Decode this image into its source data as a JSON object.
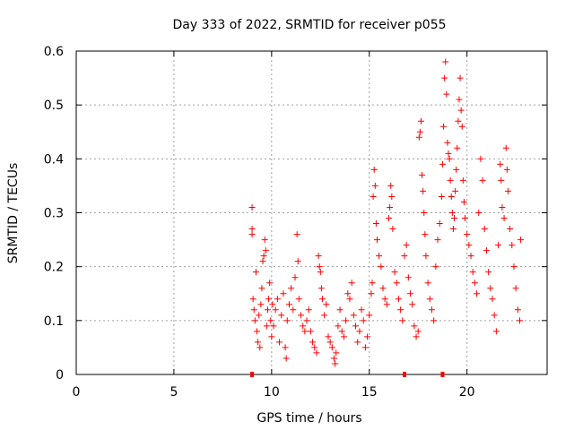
{
  "chart_data": {
    "type": "scatter",
    "title": "Day 333 of 2022, SRMTID for receiver p055",
    "xlabel": "GPS time / hours",
    "ylabel": "SRMTID / TECUs",
    "xlim": [
      0,
      24.1
    ],
    "ylim": [
      0,
      0.6
    ],
    "xticks": [
      0,
      5,
      10,
      15,
      20
    ],
    "xtick_labels": [
      "0",
      "5",
      "10",
      "15",
      "20"
    ],
    "yticks": [
      0,
      0.1,
      0.2,
      0.3,
      0.4,
      0.5,
      0.6
    ],
    "ytick_labels": [
      "0",
      "0.1",
      "0.2",
      "0.3",
      "0.4",
      "0.5",
      "0.6"
    ],
    "grid": true,
    "marker": "+",
    "color": "#ff0000",
    "series": [
      {
        "name": "SRMTID",
        "points": [
          [
            9.0,
            0.31
          ],
          [
            9.0,
            0.27
          ],
          [
            9.0,
            0.26
          ],
          [
            9.05,
            0.14
          ],
          [
            9.1,
            0.12
          ],
          [
            9.15,
            0.1
          ],
          [
            9.2,
            0.19
          ],
          [
            9.25,
            0.08
          ],
          [
            9.3,
            0.06
          ],
          [
            9.35,
            0.11
          ],
          [
            9.4,
            0.05
          ],
          [
            9.45,
            0.13
          ],
          [
            9.5,
            0.16
          ],
          [
            9.55,
            0.21
          ],
          [
            9.6,
            0.22
          ],
          [
            9.65,
            0.25
          ],
          [
            9.7,
            0.23
          ],
          [
            9.75,
            0.09
          ],
          [
            9.8,
            0.12
          ],
          [
            9.85,
            0.14
          ],
          [
            9.9,
            0.17
          ],
          [
            9.95,
            0.1
          ],
          [
            10.0,
            0.07
          ],
          [
            10.05,
            0.13
          ],
          [
            10.1,
            0.09
          ],
          [
            10.2,
            0.12
          ],
          [
            10.3,
            0.14
          ],
          [
            10.4,
            0.06
          ],
          [
            10.5,
            0.11
          ],
          [
            10.6,
            0.15
          ],
          [
            10.7,
            0.05
          ],
          [
            10.75,
            0.03
          ],
          [
            10.8,
            0.1
          ],
          [
            10.9,
            0.13
          ],
          [
            11.0,
            0.16
          ],
          [
            11.1,
            0.12
          ],
          [
            11.2,
            0.18
          ],
          [
            11.3,
            0.26
          ],
          [
            11.35,
            0.21
          ],
          [
            11.4,
            0.14
          ],
          [
            11.5,
            0.11
          ],
          [
            11.6,
            0.09
          ],
          [
            11.7,
            0.08
          ],
          [
            11.8,
            0.1
          ],
          [
            11.9,
            0.12
          ],
          [
            12.0,
            0.08
          ],
          [
            12.1,
            0.06
          ],
          [
            12.2,
            0.05
          ],
          [
            12.3,
            0.04
          ],
          [
            12.4,
            0.22
          ],
          [
            12.45,
            0.2
          ],
          [
            12.5,
            0.19
          ],
          [
            12.55,
            0.16
          ],
          [
            12.6,
            0.14
          ],
          [
            12.7,
            0.11
          ],
          [
            12.8,
            0.13
          ],
          [
            12.9,
            0.07
          ],
          [
            13.0,
            0.06
          ],
          [
            13.1,
            0.05
          ],
          [
            13.2,
            0.03
          ],
          [
            13.25,
            0.02
          ],
          [
            13.3,
            0.04
          ],
          [
            13.4,
            0.09
          ],
          [
            13.5,
            0.12
          ],
          [
            13.6,
            0.08
          ],
          [
            13.7,
            0.07
          ],
          [
            13.8,
            0.1
          ],
          [
            13.9,
            0.15
          ],
          [
            14.0,
            0.14
          ],
          [
            14.1,
            0.17
          ],
          [
            14.2,
            0.11
          ],
          [
            14.3,
            0.09
          ],
          [
            14.4,
            0.06
          ],
          [
            14.5,
            0.08
          ],
          [
            14.6,
            0.12
          ],
          [
            14.7,
            0.1
          ],
          [
            14.8,
            0.05
          ],
          [
            14.9,
            0.07
          ],
          [
            15.0,
            0.11
          ],
          [
            15.1,
            0.15
          ],
          [
            15.15,
            0.17
          ],
          [
            15.2,
            0.33
          ],
          [
            15.25,
            0.38
          ],
          [
            15.3,
            0.35
          ],
          [
            15.35,
            0.28
          ],
          [
            15.4,
            0.25
          ],
          [
            15.5,
            0.22
          ],
          [
            15.6,
            0.2
          ],
          [
            15.7,
            0.16
          ],
          [
            15.8,
            0.14
          ],
          [
            15.9,
            0.13
          ],
          [
            16.0,
            0.29
          ],
          [
            16.05,
            0.31
          ],
          [
            16.1,
            0.35
          ],
          [
            16.15,
            0.33
          ],
          [
            16.2,
            0.27
          ],
          [
            16.3,
            0.19
          ],
          [
            16.4,
            0.17
          ],
          [
            16.5,
            0.14
          ],
          [
            16.6,
            0.12
          ],
          [
            16.7,
            0.1
          ],
          [
            16.8,
            0.22
          ],
          [
            16.9,
            0.24
          ],
          [
            17.0,
            0.18
          ],
          [
            17.1,
            0.15
          ],
          [
            17.2,
            0.13
          ],
          [
            17.3,
            0.09
          ],
          [
            17.4,
            0.07
          ],
          [
            17.5,
            0.08
          ],
          [
            17.55,
            0.44
          ],
          [
            17.6,
            0.45
          ],
          [
            17.65,
            0.47
          ],
          [
            17.7,
            0.37
          ],
          [
            17.75,
            0.34
          ],
          [
            17.8,
            0.3
          ],
          [
            17.85,
            0.26
          ],
          [
            17.9,
            0.22
          ],
          [
            18.0,
            0.17
          ],
          [
            18.1,
            0.14
          ],
          [
            18.2,
            0.12
          ],
          [
            18.3,
            0.1
          ],
          [
            18.4,
            0.2
          ],
          [
            18.5,
            0.25
          ],
          [
            18.6,
            0.28
          ],
          [
            18.7,
            0.33
          ],
          [
            18.75,
            0.39
          ],
          [
            18.8,
            0.46
          ],
          [
            18.85,
            0.55
          ],
          [
            18.9,
            0.58
          ],
          [
            18.95,
            0.52
          ],
          [
            19.0,
            0.43
          ],
          [
            19.05,
            0.41
          ],
          [
            19.1,
            0.4
          ],
          [
            19.15,
            0.36
          ],
          [
            19.2,
            0.33
          ],
          [
            19.25,
            0.3
          ],
          [
            19.3,
            0.27
          ],
          [
            19.35,
            0.29
          ],
          [
            19.4,
            0.34
          ],
          [
            19.45,
            0.38
          ],
          [
            19.5,
            0.42
          ],
          [
            19.55,
            0.47
          ],
          [
            19.6,
            0.51
          ],
          [
            19.65,
            0.55
          ],
          [
            19.7,
            0.49
          ],
          [
            19.75,
            0.46
          ],
          [
            19.8,
            0.36
          ],
          [
            19.85,
            0.32
          ],
          [
            19.9,
            0.29
          ],
          [
            20.0,
            0.26
          ],
          [
            20.1,
            0.24
          ],
          [
            20.2,
            0.22
          ],
          [
            20.3,
            0.19
          ],
          [
            20.4,
            0.17
          ],
          [
            20.5,
            0.15
          ],
          [
            20.6,
            0.3
          ],
          [
            20.7,
            0.4
          ],
          [
            20.8,
            0.36
          ],
          [
            20.9,
            0.27
          ],
          [
            21.0,
            0.23
          ],
          [
            21.1,
            0.19
          ],
          [
            21.2,
            0.16
          ],
          [
            21.3,
            0.14
          ],
          [
            21.4,
            0.11
          ],
          [
            21.5,
            0.08
          ],
          [
            21.6,
            0.24
          ],
          [
            21.7,
            0.39
          ],
          [
            21.75,
            0.36
          ],
          [
            21.8,
            0.31
          ],
          [
            21.9,
            0.29
          ],
          [
            22.0,
            0.42
          ],
          [
            22.05,
            0.38
          ],
          [
            22.1,
            0.34
          ],
          [
            22.2,
            0.27
          ],
          [
            22.3,
            0.24
          ],
          [
            22.4,
            0.2
          ],
          [
            22.5,
            0.16
          ],
          [
            22.6,
            0.12
          ],
          [
            22.7,
            0.1
          ],
          [
            22.75,
            0.25
          ]
        ]
      }
    ],
    "axis_markers": [
      9.0,
      16.8,
      18.75
    ]
  }
}
